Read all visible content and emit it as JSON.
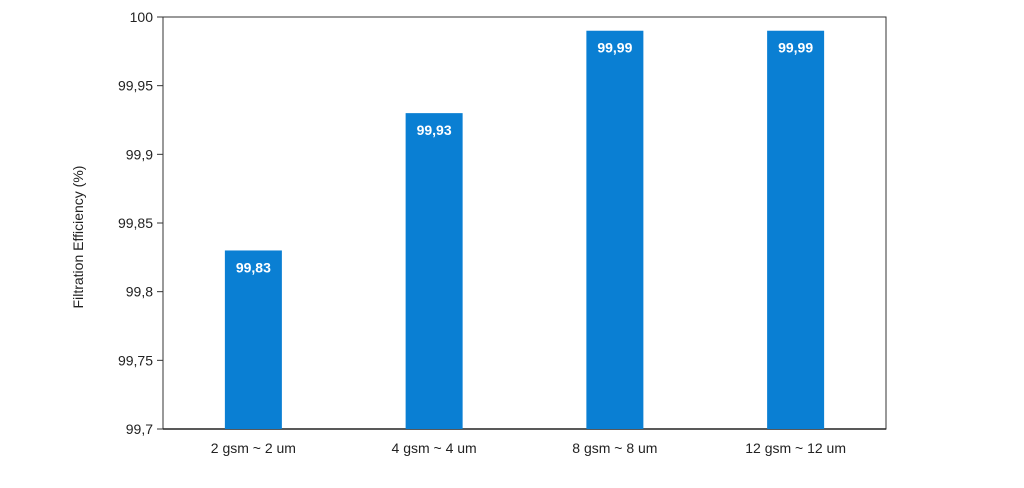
{
  "chart_data": {
    "type": "bar",
    "categories": [
      "2 gsm ~ 2 um",
      "4 gsm ~ 4 um",
      "8 gsm ~ 8 um",
      "12 gsm ~ 12 um"
    ],
    "values": [
      99.83,
      99.93,
      99.99,
      99.99
    ],
    "data_labels": [
      "99,83",
      "99,93",
      "99,99",
      "99,99"
    ],
    "ylabel": "Filtration Efficiency (%)",
    "ylim": [
      99.7,
      100
    ],
    "yticks": [
      99.7,
      99.75,
      99.8,
      99.85,
      99.9,
      99.95,
      100
    ],
    "ytick_labels": [
      "99,7",
      "99,75",
      "99,8",
      "99,85",
      "99,9",
      "99,95",
      "100"
    ],
    "bar_color": "#0a7fd3",
    "grid": false,
    "legend": "none"
  }
}
